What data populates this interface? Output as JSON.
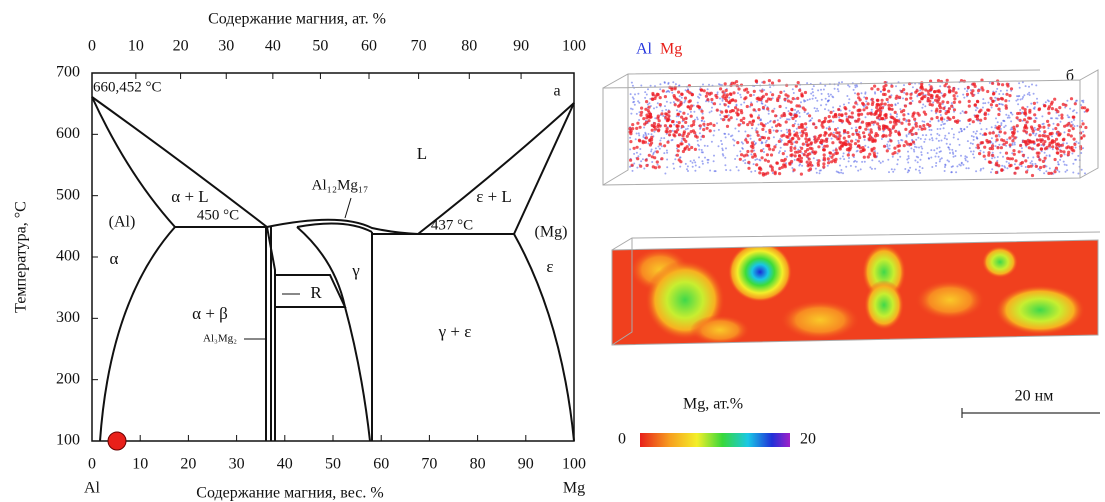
{
  "left_panel": {
    "panel_label": "а",
    "top_axis": {
      "title": "Содержание магния, ат. %",
      "ticks": [
        0,
        10,
        20,
        30,
        40,
        50,
        60,
        70,
        80,
        90,
        100
      ]
    },
    "bottom_axis": {
      "title": "Содержание магния, вес. %",
      "ticks": [
        0,
        10,
        20,
        30,
        40,
        50,
        60,
        70,
        80,
        90,
        100
      ],
      "end_labels": [
        "Al",
        "Mg"
      ]
    },
    "left_axis": {
      "title": "Температура, °C",
      "ticks": [
        100,
        200,
        300,
        400,
        500,
        600,
        700
      ]
    },
    "labels": [
      "660,452 °C",
      "L",
      "α + L",
      "(Al)",
      "450 °C",
      "α",
      "α + β",
      "Al₃Mg₂",
      "R",
      "γ",
      "γ + ε",
      "ε + L",
      "437 °C",
      "(Mg)",
      "ε",
      "Al₁₂Mg₁₇"
    ]
  },
  "right_panel": {
    "panel_label": "б",
    "legend": [
      "Al",
      "Mg"
    ],
    "colorbar": {
      "title": "Mg, ат.%",
      "min_label": "0",
      "max_label": "20"
    },
    "scale_bar": "20 нм"
  }
}
